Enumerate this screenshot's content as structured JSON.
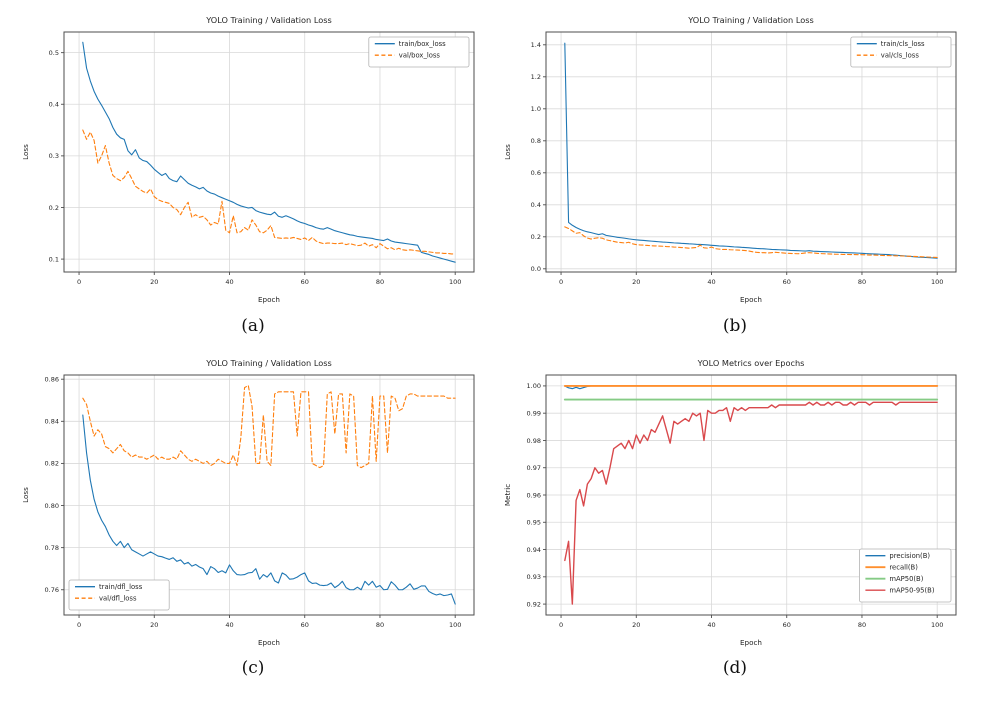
{
  "figure": {
    "background": "#ffffff",
    "grid_color": "#d9d9d9",
    "spine_color": "#4d4d4d",
    "text_color": "#262626"
  },
  "chart_data": [
    {
      "id": "a",
      "caption": "(a)",
      "type": "line",
      "title": "YOLO Training / Validation Loss",
      "xlabel": "Epoch",
      "ylabel": "Loss",
      "xlim": [
        -4,
        105
      ],
      "ylim": [
        0.075,
        0.54
      ],
      "xticks": [
        0,
        20,
        40,
        60,
        80,
        100
      ],
      "xtick_labels": [
        "0",
        "20",
        "40",
        "60",
        "80",
        "100"
      ],
      "yticks": [
        0.1,
        0.2,
        0.3,
        0.4,
        0.5
      ],
      "ytick_labels": [
        "0.1",
        "0.2",
        "0.3",
        "0.4",
        "0.5"
      ],
      "grid": true,
      "legend": {
        "position": "top-right",
        "dy": 0
      },
      "series": [
        {
          "name": "train/box_loss",
          "color": "#1f77b4",
          "dash": "solid",
          "width": 1.1,
          "values": [
            0.52,
            0.47,
            0.445,
            0.425,
            0.41,
            0.398,
            0.385,
            0.372,
            0.355,
            0.342,
            0.335,
            0.332,
            0.31,
            0.302,
            0.312,
            0.296,
            0.291,
            0.289,
            0.282,
            0.274,
            0.268,
            0.262,
            0.266,
            0.256,
            0.252,
            0.25,
            0.261,
            0.254,
            0.247,
            0.243,
            0.24,
            0.236,
            0.239,
            0.232,
            0.228,
            0.226,
            0.222,
            0.219,
            0.216,
            0.213,
            0.21,
            0.206,
            0.203,
            0.201,
            0.199,
            0.2,
            0.194,
            0.191,
            0.189,
            0.187,
            0.186,
            0.191,
            0.183,
            0.181,
            0.184,
            0.181,
            0.178,
            0.174,
            0.171,
            0.169,
            0.166,
            0.164,
            0.161,
            0.159,
            0.158,
            0.161,
            0.158,
            0.155,
            0.153,
            0.151,
            0.149,
            0.147,
            0.146,
            0.144,
            0.143,
            0.142,
            0.141,
            0.14,
            0.138,
            0.137,
            0.136,
            0.139,
            0.135,
            0.133,
            0.132,
            0.131,
            0.13,
            0.129,
            0.128,
            0.127,
            0.113,
            0.111,
            0.109,
            0.106,
            0.104,
            0.102,
            0.1,
            0.098,
            0.096,
            0.094
          ]
        },
        {
          "name": "val/box_loss",
          "color": "#ff7f0e",
          "dash": "dashed",
          "width": 1.1,
          "values": [
            0.35,
            0.332,
            0.346,
            0.33,
            0.286,
            0.3,
            0.32,
            0.286,
            0.262,
            0.256,
            0.252,
            0.258,
            0.27,
            0.256,
            0.241,
            0.236,
            0.231,
            0.228,
            0.236,
            0.221,
            0.215,
            0.212,
            0.21,
            0.208,
            0.2,
            0.196,
            0.186,
            0.2,
            0.21,
            0.181,
            0.186,
            0.181,
            0.183,
            0.176,
            0.166,
            0.171,
            0.168,
            0.212,
            0.156,
            0.151,
            0.184,
            0.151,
            0.153,
            0.161,
            0.156,
            0.176,
            0.166,
            0.153,
            0.151,
            0.156,
            0.165,
            0.142,
            0.141,
            0.14,
            0.141,
            0.14,
            0.142,
            0.14,
            0.138,
            0.141,
            0.136,
            0.142,
            0.135,
            0.132,
            0.13,
            0.131,
            0.131,
            0.13,
            0.13,
            0.131,
            0.128,
            0.13,
            0.128,
            0.126,
            0.127,
            0.131,
            0.125,
            0.128,
            0.122,
            0.13,
            0.125,
            0.12,
            0.122,
            0.118,
            0.121,
            0.118,
            0.117,
            0.118,
            0.117,
            0.116,
            0.115,
            0.115,
            0.114,
            0.113,
            0.112,
            0.112,
            0.111,
            0.111,
            0.11,
            0.11
          ]
        }
      ]
    },
    {
      "id": "b",
      "caption": "(b)",
      "type": "line",
      "title": "YOLO Training / Validation Loss",
      "xlabel": "Epoch",
      "ylabel": "Loss",
      "xlim": [
        -4,
        105
      ],
      "ylim": [
        -0.02,
        1.48
      ],
      "xticks": [
        0,
        20,
        40,
        60,
        80,
        100
      ],
      "xtick_labels": [
        "0",
        "20",
        "40",
        "60",
        "80",
        "100"
      ],
      "yticks": [
        0.0,
        0.2,
        0.4,
        0.6,
        0.8,
        1.0,
        1.2,
        1.4
      ],
      "ytick_labels": [
        "0.0",
        "0.2",
        "0.4",
        "0.6",
        "0.8",
        "1.0",
        "1.2",
        "1.4"
      ],
      "grid": true,
      "legend": {
        "position": "top-right",
        "dy": 0
      },
      "series": [
        {
          "name": "train/cls_loss",
          "color": "#1f77b4",
          "dash": "solid",
          "width": 1.1,
          "values": [
            1.41,
            0.29,
            0.272,
            0.258,
            0.247,
            0.238,
            0.231,
            0.226,
            0.22,
            0.214,
            0.219,
            0.209,
            0.205,
            0.201,
            0.197,
            0.194,
            0.191,
            0.187,
            0.184,
            0.181,
            0.179,
            0.177,
            0.175,
            0.173,
            0.171,
            0.169,
            0.167,
            0.166,
            0.164,
            0.162,
            0.161,
            0.159,
            0.158,
            0.156,
            0.155,
            0.153,
            0.152,
            0.151,
            0.149,
            0.147,
            0.145,
            0.143,
            0.142,
            0.141,
            0.139,
            0.137,
            0.136,
            0.134,
            0.133,
            0.131,
            0.129,
            0.127,
            0.126,
            0.125,
            0.123,
            0.121,
            0.12,
            0.119,
            0.118,
            0.117,
            0.115,
            0.114,
            0.113,
            0.112,
            0.111,
            0.113,
            0.11,
            0.109,
            0.108,
            0.107,
            0.106,
            0.105,
            0.104,
            0.103,
            0.102,
            0.101,
            0.1,
            0.099,
            0.098,
            0.097,
            0.095,
            0.094,
            0.093,
            0.092,
            0.091,
            0.09,
            0.089,
            0.087,
            0.085,
            0.083,
            0.081,
            0.079,
            0.077,
            0.075,
            0.073,
            0.072,
            0.071,
            0.069,
            0.068,
            0.066
          ]
        },
        {
          "name": "val/cls_loss",
          "color": "#ff7f0e",
          "dash": "dashed",
          "width": 1.1,
          "values": [
            0.262,
            0.252,
            0.237,
            0.222,
            0.226,
            0.206,
            0.192,
            0.186,
            0.191,
            0.194,
            0.191,
            0.181,
            0.176,
            0.171,
            0.166,
            0.164,
            0.161,
            0.166,
            0.156,
            0.151,
            0.149,
            0.148,
            0.146,
            0.144,
            0.143,
            0.142,
            0.141,
            0.139,
            0.138,
            0.136,
            0.135,
            0.133,
            0.131,
            0.129,
            0.131,
            0.133,
            0.148,
            0.131,
            0.129,
            0.136,
            0.126,
            0.123,
            0.121,
            0.121,
            0.119,
            0.118,
            0.117,
            0.116,
            0.114,
            0.111,
            0.106,
            0.103,
            0.101,
            0.101,
            0.099,
            0.101,
            0.103,
            0.101,
            0.099,
            0.097,
            0.096,
            0.095,
            0.094,
            0.096,
            0.099,
            0.101,
            0.099,
            0.097,
            0.095,
            0.094,
            0.093,
            0.092,
            0.091,
            0.091,
            0.09,
            0.09,
            0.089,
            0.089,
            0.088,
            0.088,
            0.087,
            0.086,
            0.086,
            0.085,
            0.084,
            0.083,
            0.083,
            0.082,
            0.081,
            0.081,
            0.08,
            0.079,
            0.078,
            0.077,
            0.076,
            0.075,
            0.074,
            0.073,
            0.072,
            0.071
          ]
        }
      ]
    },
    {
      "id": "c",
      "caption": "(c)",
      "type": "line",
      "title": "YOLO Training / Validation Loss",
      "xlabel": "Epoch",
      "ylabel": "Loss",
      "xlim": [
        -4,
        105
      ],
      "ylim": [
        0.748,
        0.862
      ],
      "xticks": [
        0,
        20,
        40,
        60,
        80,
        100
      ],
      "xtick_labels": [
        "0",
        "20",
        "40",
        "60",
        "80",
        "100"
      ],
      "yticks": [
        0.76,
        0.78,
        0.8,
        0.82,
        0.84,
        0.86
      ],
      "ytick_labels": [
        "0.76",
        "0.78",
        "0.80",
        "0.82",
        "0.84",
        "0.86"
      ],
      "grid": true,
      "legend": {
        "position": "bottom-left",
        "dy": 0
      },
      "series": [
        {
          "name": "train/dfl_loss",
          "color": "#1f77b4",
          "dash": "solid",
          "width": 1.1,
          "values": [
            0.843,
            0.825,
            0.812,
            0.803,
            0.797,
            0.793,
            0.79,
            0.786,
            0.783,
            0.781,
            0.783,
            0.78,
            0.782,
            0.779,
            0.778,
            0.777,
            0.776,
            0.777,
            0.778,
            0.777,
            0.776,
            0.7757,
            0.775,
            0.7744,
            0.7752,
            0.7735,
            0.7742,
            0.7722,
            0.773,
            0.7712,
            0.772,
            0.7708,
            0.77,
            0.7672,
            0.771,
            0.77,
            0.7682,
            0.769,
            0.768,
            0.7718,
            0.769,
            0.7672,
            0.767,
            0.7672,
            0.768,
            0.7682,
            0.77,
            0.765,
            0.7672,
            0.766,
            0.768,
            0.7642,
            0.7632,
            0.768,
            0.767,
            0.765,
            0.7652,
            0.766,
            0.7672,
            0.768,
            0.7642,
            0.763,
            0.7632,
            0.7622,
            0.762,
            0.7622,
            0.7632,
            0.761,
            0.7622,
            0.764,
            0.761,
            0.76,
            0.76,
            0.7612,
            0.76,
            0.764,
            0.7622,
            0.764,
            0.7612,
            0.762,
            0.76,
            0.7602,
            0.7638,
            0.7622,
            0.76,
            0.76,
            0.7612,
            0.7628,
            0.7602,
            0.7608,
            0.7618,
            0.7618,
            0.7592,
            0.7582,
            0.7575,
            0.758,
            0.7572,
            0.7575,
            0.758,
            0.7532
          ]
        },
        {
          "name": "val/dfl_loss",
          "color": "#ff7f0e",
          "dash": "dashed",
          "width": 1.1,
          "values": [
            0.851,
            0.848,
            0.84,
            0.833,
            0.836,
            0.834,
            0.828,
            0.827,
            0.825,
            0.827,
            0.829,
            0.826,
            0.825,
            0.823,
            0.824,
            0.823,
            0.823,
            0.822,
            0.823,
            0.824,
            0.822,
            0.823,
            0.822,
            0.822,
            0.823,
            0.822,
            0.826,
            0.824,
            0.822,
            0.821,
            0.822,
            0.821,
            0.82,
            0.821,
            0.819,
            0.82,
            0.822,
            0.821,
            0.82,
            0.82,
            0.824,
            0.819,
            0.832,
            0.856,
            0.857,
            0.847,
            0.82,
            0.82,
            0.843,
            0.821,
            0.819,
            0.853,
            0.854,
            0.854,
            0.854,
            0.854,
            0.854,
            0.833,
            0.854,
            0.854,
            0.854,
            0.82,
            0.819,
            0.818,
            0.819,
            0.853,
            0.854,
            0.834,
            0.853,
            0.853,
            0.825,
            0.853,
            0.852,
            0.819,
            0.818,
            0.819,
            0.82,
            0.852,
            0.821,
            0.852,
            0.852,
            0.825,
            0.852,
            0.851,
            0.845,
            0.846,
            0.852,
            0.853,
            0.853,
            0.852,
            0.852,
            0.852,
            0.852,
            0.852,
            0.852,
            0.852,
            0.852,
            0.851,
            0.851,
            0.851
          ]
        }
      ]
    },
    {
      "id": "d",
      "caption": "(d)",
      "type": "line",
      "title": "YOLO Metrics over Epochs",
      "xlabel": "Epoch",
      "ylabel": "Metric",
      "xlim": [
        -4,
        105
      ],
      "ylim": [
        0.916,
        1.004
      ],
      "xticks": [
        0,
        20,
        40,
        60,
        80,
        100
      ],
      "xtick_labels": [
        "0",
        "20",
        "40",
        "60",
        "80",
        "100"
      ],
      "yticks": [
        0.92,
        0.93,
        0.94,
        0.95,
        0.96,
        0.97,
        0.98,
        0.99,
        1.0
      ],
      "ytick_labels": [
        "0.92",
        "0.93",
        "0.94",
        "0.95",
        "0.96",
        "0.97",
        "0.98",
        "0.99",
        "1.00"
      ],
      "grid": true,
      "legend": {
        "position": "bottom-right",
        "dy": -8
      },
      "series": [
        {
          "name": "precision(B)",
          "color": "#1f77b4",
          "dash": "solid",
          "width": 1.2,
          "pad_to": 100,
          "values": [
            1.0,
            0.9993,
            0.999,
            0.9995,
            0.999,
            0.9994,
            0.9998,
            1.0
          ]
        },
        {
          "name": "recall(B)",
          "color": "#ff8f2e",
          "dash": "solid",
          "width": 1.9,
          "pad_to": 100,
          "values": [
            1.0
          ]
        },
        {
          "name": "mAP50(B)",
          "color": "#85cb85",
          "dash": "solid",
          "width": 1.9,
          "pad_to": 100,
          "values": [
            0.995
          ]
        },
        {
          "name": "mAP50-95(B)",
          "color": "#d9494c",
          "dash": "solid",
          "width": 1.4,
          "values": [
            0.936,
            0.943,
            0.92,
            0.958,
            0.962,
            0.956,
            0.964,
            0.966,
            0.97,
            0.968,
            0.969,
            0.964,
            0.97,
            0.977,
            0.978,
            0.979,
            0.977,
            0.98,
            0.977,
            0.982,
            0.979,
            0.982,
            0.98,
            0.984,
            0.983,
            0.986,
            0.989,
            0.984,
            0.979,
            0.987,
            0.986,
            0.987,
            0.988,
            0.987,
            0.99,
            0.989,
            0.99,
            0.98,
            0.991,
            0.99,
            0.99,
            0.991,
            0.991,
            0.992,
            0.987,
            0.992,
            0.991,
            0.992,
            0.991,
            0.992,
            0.992,
            0.992,
            0.992,
            0.992,
            0.992,
            0.993,
            0.992,
            0.993,
            0.993,
            0.993,
            0.993,
            0.993,
            0.993,
            0.993,
            0.993,
            0.994,
            0.993,
            0.994,
            0.993,
            0.993,
            0.994,
            0.993,
            0.994,
            0.994,
            0.993,
            0.993,
            0.994,
            0.993,
            0.994,
            0.994,
            0.994,
            0.993,
            0.994,
            0.994,
            0.994,
            0.994,
            0.994,
            0.994,
            0.993,
            0.994,
            0.994,
            0.994,
            0.994,
            0.994,
            0.994,
            0.994,
            0.994,
            0.994,
            0.994,
            0.994
          ]
        }
      ]
    }
  ]
}
